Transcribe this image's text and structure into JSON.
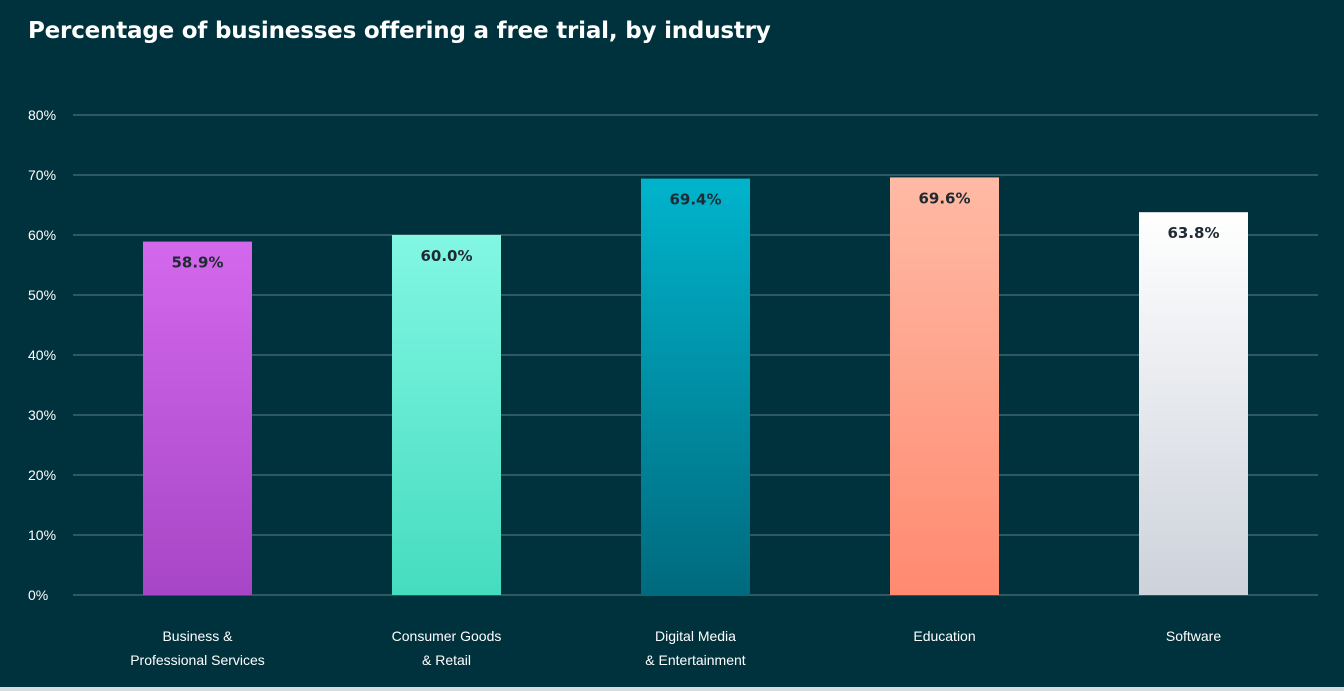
{
  "chart_data": {
    "type": "bar",
    "title": "Percentage of businesses offering a free trial, by industry",
    "categories": [
      [
        "Business &",
        "Professional Services"
      ],
      [
        "Consumer Goods",
        "& Retail"
      ],
      [
        "Digital Media",
        "& Entertainment"
      ],
      [
        "Education"
      ],
      [
        "Software"
      ]
    ],
    "values": [
      58.9,
      60.0,
      69.4,
      69.6,
      63.8
    ],
    "value_labels": [
      "58.9%",
      "60.0%",
      "69.4%",
      "69.6%",
      "63.8%"
    ],
    "yticks": [
      "0%",
      "10%",
      "20%",
      "30%",
      "40%",
      "50%",
      "60%",
      "70%",
      "80%"
    ],
    "ylim": [
      0,
      80
    ],
    "grid": true,
    "colors": {
      "background": "#00323d",
      "gridline": "#5e8088",
      "tick_text": "#ffffff",
      "value_text": "#1f2a33",
      "bars": [
        {
          "top": "#d468ec",
          "bottom": "#a646c6"
        },
        {
          "top": "#82f7e3",
          "bottom": "#45dcbf"
        },
        {
          "top": "#00b4cc",
          "bottom": "#006a7e"
        },
        {
          "top": "#ffbaa5",
          "bottom": "#ff8a70"
        },
        {
          "top": "#ffffff",
          "bottom": "#cdd2db"
        }
      ]
    }
  }
}
